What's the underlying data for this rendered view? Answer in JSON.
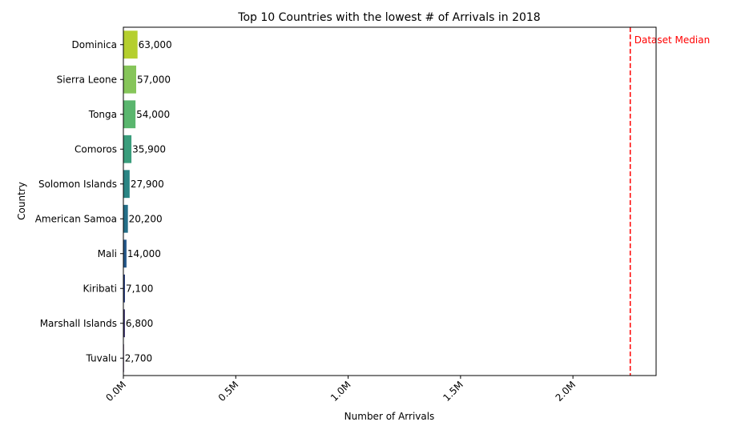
{
  "chart_data": {
    "type": "bar",
    "orientation": "horizontal",
    "title": "Top 10 Countries with the lowest # of Arrivals in 2018",
    "xlabel": "Number of Arrivals",
    "ylabel": "Country",
    "categories": [
      "Dominica",
      "Sierra Leone",
      "Tonga",
      "Comoros",
      "Solomon Islands",
      "American Samoa",
      "Mali",
      "Kiribati",
      "Marshall Islands",
      "Tuvalu"
    ],
    "values": [
      63000,
      57000,
      54000,
      35900,
      27900,
      20200,
      14000,
      7100,
      6800,
      2700
    ],
    "value_labels": [
      "63,000",
      "57,000",
      "54,000",
      "35,900",
      "27,900",
      "20,200",
      "14,000",
      "7,100",
      "6,800",
      "2,700"
    ],
    "bar_colors": [
      "#b5cf2f",
      "#86c55a",
      "#5ab66e",
      "#3a9d7c",
      "#2b8584",
      "#256f88",
      "#26598b",
      "#2c3f7e",
      "#39306a",
      "#3a1657"
    ],
    "xlim": [
      0,
      2370000
    ],
    "xticks": [
      0,
      500000,
      1000000,
      1500000,
      2000000
    ],
    "xtick_labels": [
      "0.0M",
      "0.5M",
      "1.0M",
      "1.5M",
      "2.0M"
    ],
    "xtick_rotation": 45,
    "reference_line": {
      "value": 2255000,
      "label": "Dataset Median",
      "color": "#ff0000",
      "style": "dashed"
    },
    "grid": false,
    "legend": "none"
  }
}
